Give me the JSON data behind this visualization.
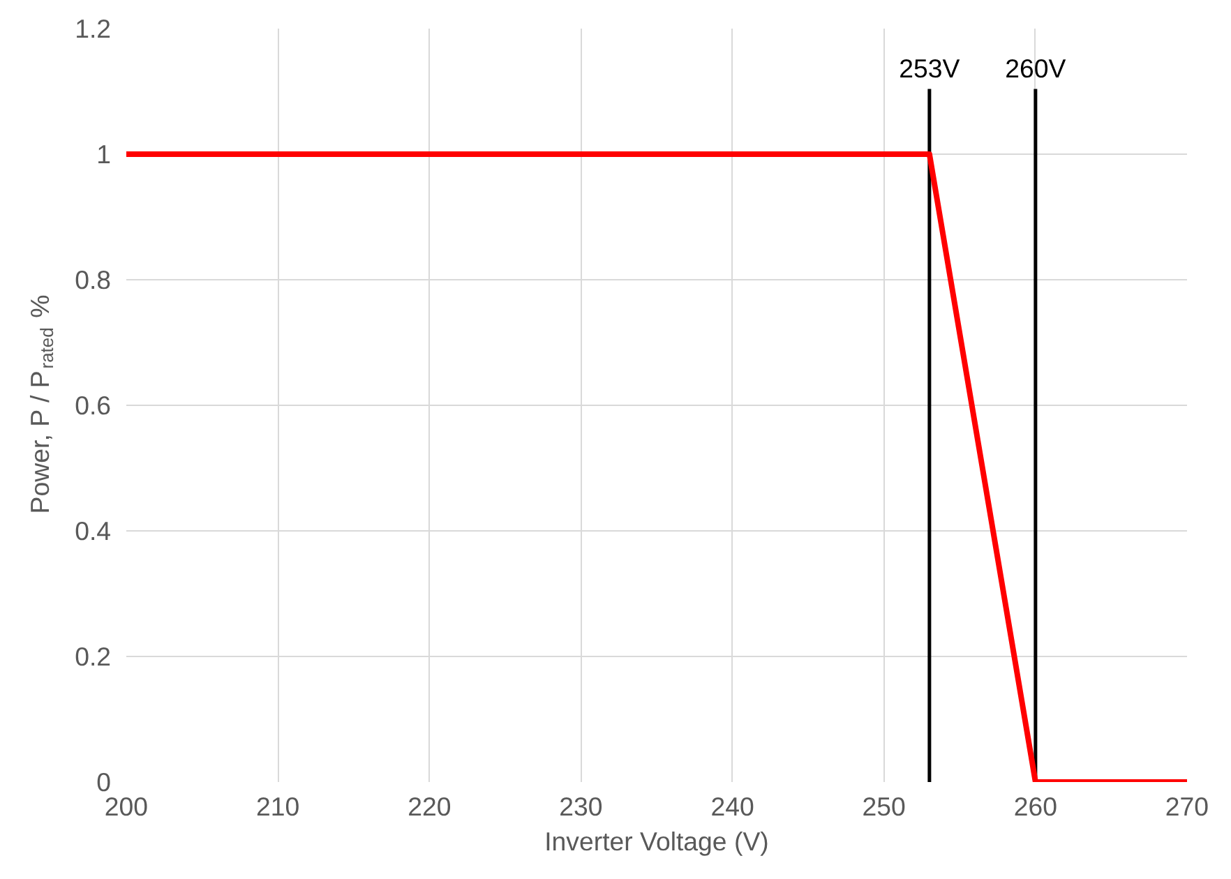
{
  "chart_data": {
    "type": "line",
    "xlabel": "Inverter Voltage (V)",
    "ylabel": "Power, P / P$_{rated}$ %",
    "x": [
      200,
      253,
      260,
      270
    ],
    "series": [
      {
        "color": "#ff0000",
        "values": [
          1,
          1,
          0,
          0
        ]
      }
    ],
    "xlim": [
      200,
      270
    ],
    "xticks": [
      200,
      210,
      220,
      230,
      240,
      250,
      260,
      270
    ],
    "ylim": [
      0,
      1.2
    ],
    "yticks": [
      0,
      0.2,
      0.4,
      0.6,
      0.8,
      1,
      1.2
    ],
    "ref_lines": [
      {
        "axis": "x",
        "value": 253,
        "label": "253V",
        "color": "#000000"
      },
      {
        "axis": "x",
        "value": 260,
        "label": "260V",
        "color": "#000000"
      }
    ],
    "grid": true,
    "marker": "none",
    "line_style": "solid"
  }
}
